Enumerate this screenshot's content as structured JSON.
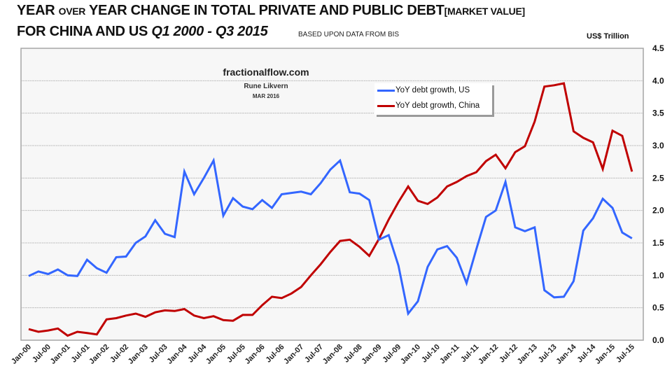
{
  "title": {
    "line1_a": "YEAR ",
    "line1_over": "OVER",
    "line1_b": " YEAR CHANGE IN TOTAL PRIVATE AND PUBLIC DEBT",
    "line1_bracket": "[MARKET VALUE]",
    "line2_a": "FOR CHINA AND US ",
    "line2_period": "Q1 2000 - Q3 2015"
  },
  "source_note": "BASED UPON DATA FROM BIS",
  "watermark": {
    "site": "fractionalflow.com",
    "author": "Rune Likvern",
    "date": "MAR 2016"
  },
  "chart_data": {
    "type": "line",
    "title": "YEAR OVER YEAR CHANGE IN TOTAL PRIVATE AND PUBLIC DEBT [MARKET VALUE] FOR CHINA AND US Q1 2000 - Q3 2015",
    "subtitle": "BASED UPON DATA FROM BIS",
    "xlabel": "",
    "ylabel": "US$ Trillion",
    "y_axis_side": "right",
    "ylim": [
      0,
      4.5
    ],
    "yticks": [
      "0.0",
      "0.5",
      "1.0",
      "1.5",
      "2.0",
      "2.5",
      "3.0",
      "3.5",
      "4.0",
      "4.5"
    ],
    "grid": true,
    "legend_position": "top-center",
    "x_tick_labels": [
      "Jan-00",
      "Jul-00",
      "Jan-01",
      "Jul-01",
      "Jan-02",
      "Jul-02",
      "Jan-03",
      "Jul-03",
      "Jan-04",
      "Jul-04",
      "Jan-05",
      "Jul-05",
      "Jan-06",
      "Jul-06",
      "Jan-07",
      "Jul-07",
      "Jan-08",
      "Jul-08",
      "Jan-09",
      "Jul-09",
      "Jan-10",
      "Jul-10",
      "Jan-11",
      "Jul-11",
      "Jan-12",
      "Jul-12",
      "Jan-13",
      "Jul-13",
      "Jan-14",
      "Jul-14",
      "Jan-15",
      "Jul-15"
    ],
    "x_frequency": "quarterly, Q1 2000 to Q3 2015",
    "series": [
      {
        "name": "YoY debt growth, US",
        "color": "#3366ff",
        "values": [
          0.99,
          1.06,
          1.02,
          1.09,
          1.0,
          0.99,
          1.24,
          1.11,
          1.04,
          1.28,
          1.29,
          1.5,
          1.6,
          1.85,
          1.64,
          1.59,
          2.6,
          2.25,
          2.5,
          2.77,
          1.92,
          2.19,
          2.06,
          2.02,
          2.16,
          2.04,
          2.25,
          2.27,
          2.29,
          2.25,
          2.42,
          2.63,
          2.77,
          2.28,
          2.26,
          2.16,
          1.55,
          1.62,
          1.15,
          0.41,
          0.6,
          1.13,
          1.4,
          1.45,
          1.27,
          0.88,
          1.4,
          1.9,
          2.0,
          2.44,
          1.74,
          1.68,
          1.74,
          0.77,
          0.66,
          0.67,
          0.91,
          1.69,
          1.88,
          2.18,
          2.04,
          1.66,
          1.57
        ]
      },
      {
        "name": "YoY debt growth, China",
        "color": "#c00000",
        "values": [
          0.17,
          0.13,
          0.15,
          0.18,
          0.07,
          0.13,
          0.11,
          0.09,
          0.32,
          0.34,
          0.38,
          0.41,
          0.36,
          0.43,
          0.46,
          0.45,
          0.48,
          0.38,
          0.34,
          0.37,
          0.31,
          0.3,
          0.39,
          0.39,
          0.54,
          0.67,
          0.65,
          0.72,
          0.82,
          1.0,
          1.17,
          1.36,
          1.53,
          1.55,
          1.44,
          1.3,
          1.56,
          1.86,
          2.13,
          2.37,
          2.15,
          2.1,
          2.2,
          2.37,
          2.44,
          2.53,
          2.59,
          2.76,
          2.86,
          2.65,
          2.9,
          2.99,
          3.37,
          3.91,
          3.93,
          3.96,
          3.22,
          3.12,
          3.05,
          2.64,
          3.23,
          3.15,
          2.6
        ]
      }
    ]
  }
}
